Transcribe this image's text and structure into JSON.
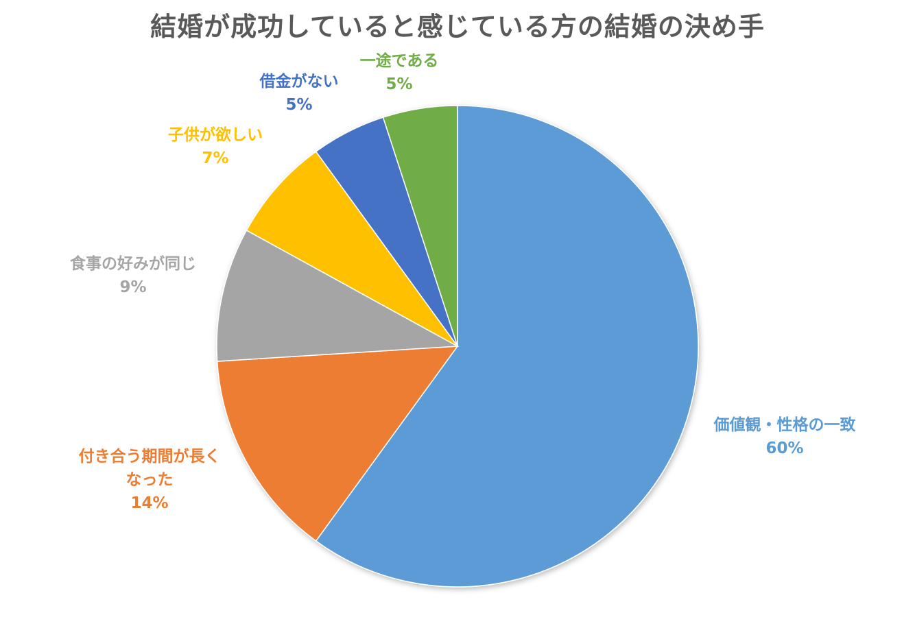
{
  "chart_data": {
    "type": "pie",
    "title": "結婚が成功していると感じている方の結婚の決め手",
    "start_angle_deg": 0,
    "direction": "clockwise",
    "slices": [
      {
        "label": "価値観・性格の一致",
        "value": 60,
        "value_label": "60%",
        "color": "#5B9BD5"
      },
      {
        "label": "付き合う期間が長くなった",
        "label_lines": [
          "付き合う期間が長く",
          "なった"
        ],
        "value": 14,
        "value_label": "14%",
        "color": "#ED7D31"
      },
      {
        "label": "食事の好みが同じ",
        "value": 9,
        "value_label": "9%",
        "color": "#A5A5A5"
      },
      {
        "label": "子供が欲しい",
        "value": 7,
        "value_label": "7%",
        "color": "#FFC000"
      },
      {
        "label": "借金がない",
        "value": 5,
        "value_label": "5%",
        "color": "#4472C4"
      },
      {
        "label": "一途である",
        "value": 5,
        "value_label": "5%",
        "color": "#70AD47"
      }
    ]
  }
}
